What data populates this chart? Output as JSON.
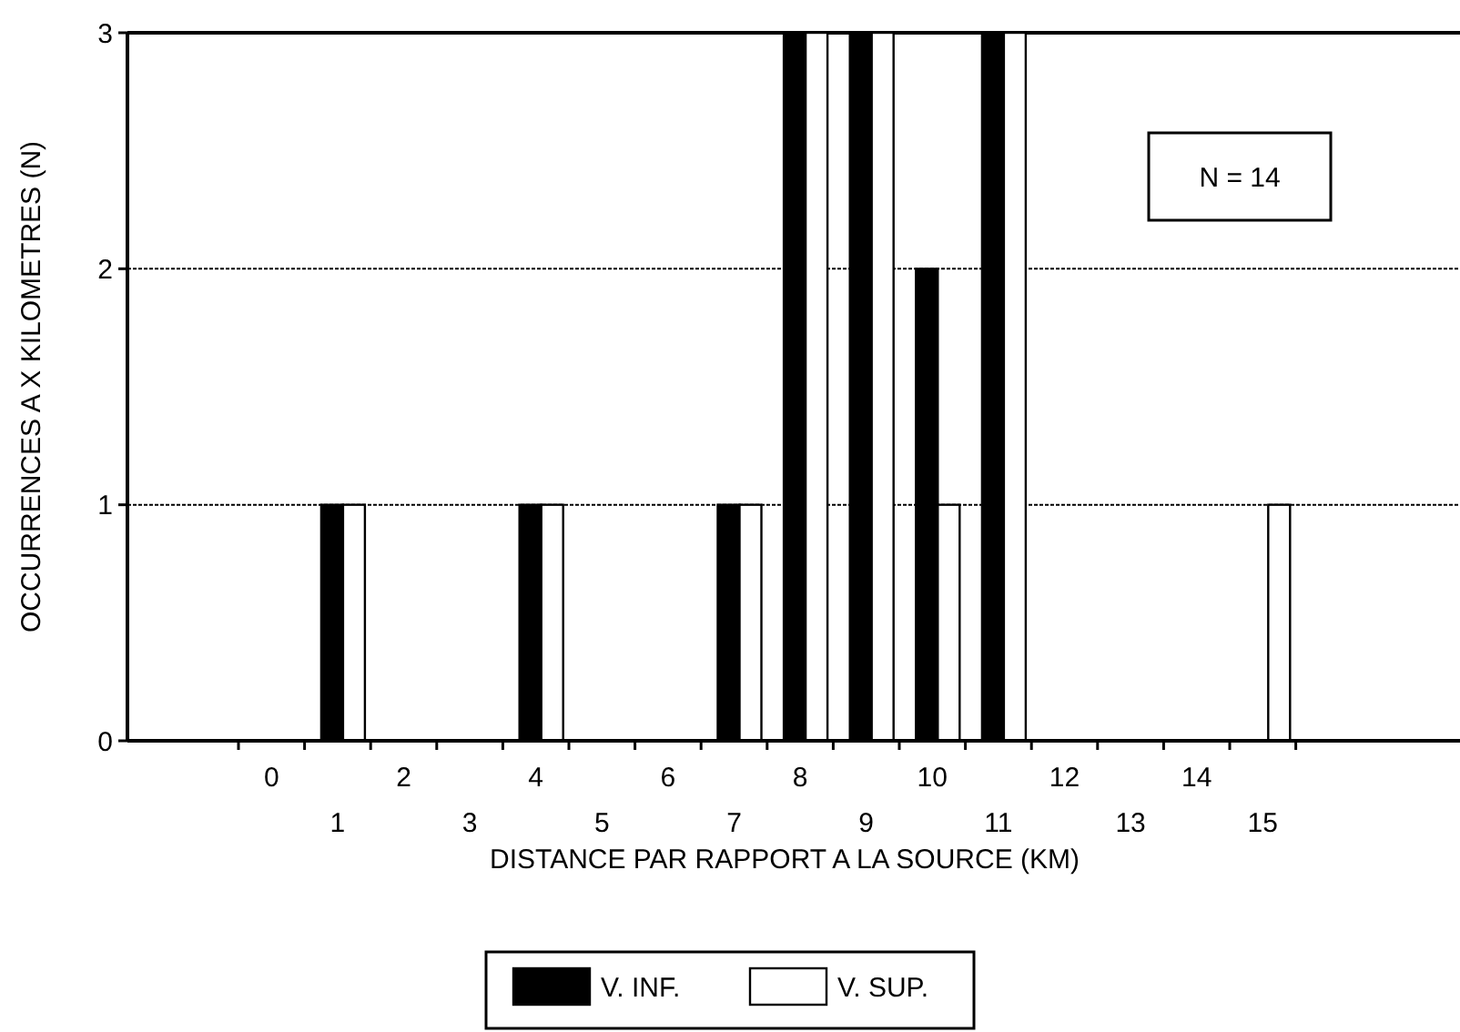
{
  "chart_data": {
    "type": "bar",
    "xlabel": "DISTANCE PAR RAPPORT A LA SOURCE (KM)",
    "ylabel": "OCCURRENCES A X KILOMETRES (N)",
    "categories": [
      "0",
      "1",
      "2",
      "3",
      "4",
      "5",
      "6",
      "7",
      "8",
      "9",
      "10",
      "11",
      "12",
      "13",
      "14",
      "15"
    ],
    "series": [
      {
        "name": "V. INF.",
        "color": "#000000",
        "values": [
          0,
          1,
          0,
          0,
          1,
          0,
          0,
          1,
          3,
          3,
          2,
          3,
          0,
          0,
          0,
          0
        ]
      },
      {
        "name": "V. SUP.",
        "color": "#ffffff",
        "values": [
          0,
          1,
          0,
          0,
          1,
          0,
          0,
          1,
          3,
          3,
          1,
          3,
          0,
          0,
          0,
          1
        ]
      }
    ],
    "ylim": [
      0,
      3
    ],
    "yticks": [
      0,
      1,
      2,
      3
    ],
    "grid": "y",
    "legend": "bottom",
    "annotations": [
      "N = 14"
    ]
  }
}
